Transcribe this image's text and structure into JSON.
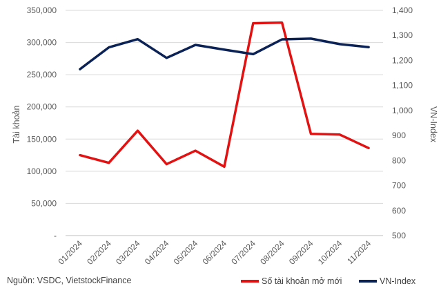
{
  "source_note": "Nguồn: VSDC, VietstockFinance",
  "colors": {
    "accounts": "#e31212",
    "vnindex": "#0b2256",
    "grid": "#d9d9d9"
  },
  "chart_data": {
    "type": "line",
    "categories": [
      "01/2024",
      "02/2024",
      "03/2024",
      "04/2024",
      "05/2024",
      "06/2024",
      "07/2024",
      "08/2024",
      "09/2024",
      "10/2024",
      "11/2024"
    ],
    "series": [
      {
        "name": "Số tài khoản mở mới",
        "axis": "left",
        "values": [
          125000,
          113000,
          163000,
          111000,
          132000,
          107000,
          330000,
          331000,
          158000,
          157000,
          136000
        ]
      },
      {
        "name": "VN-Index",
        "axis": "right",
        "values": [
          1165,
          1252,
          1285,
          1210,
          1262,
          1243,
          1225,
          1284,
          1287,
          1265,
          1253
        ]
      }
    ],
    "ylabel_left": "Tài khoản",
    "ylabel_right": "VN-Index",
    "ylim_left": [
      0,
      350000
    ],
    "ylim_right": [
      500,
      1400
    ],
    "yticks_left": [
      "-",
      "50,000",
      "100,000",
      "150,000",
      "200,000",
      "250,000",
      "300,000",
      "350,000"
    ],
    "yticks_right": [
      "500",
      "600",
      "700",
      "800",
      "900",
      "1,000",
      "1,100",
      "1,200",
      "1,300",
      "1,400"
    ],
    "grid": true,
    "legend_position": "bottom-right"
  }
}
